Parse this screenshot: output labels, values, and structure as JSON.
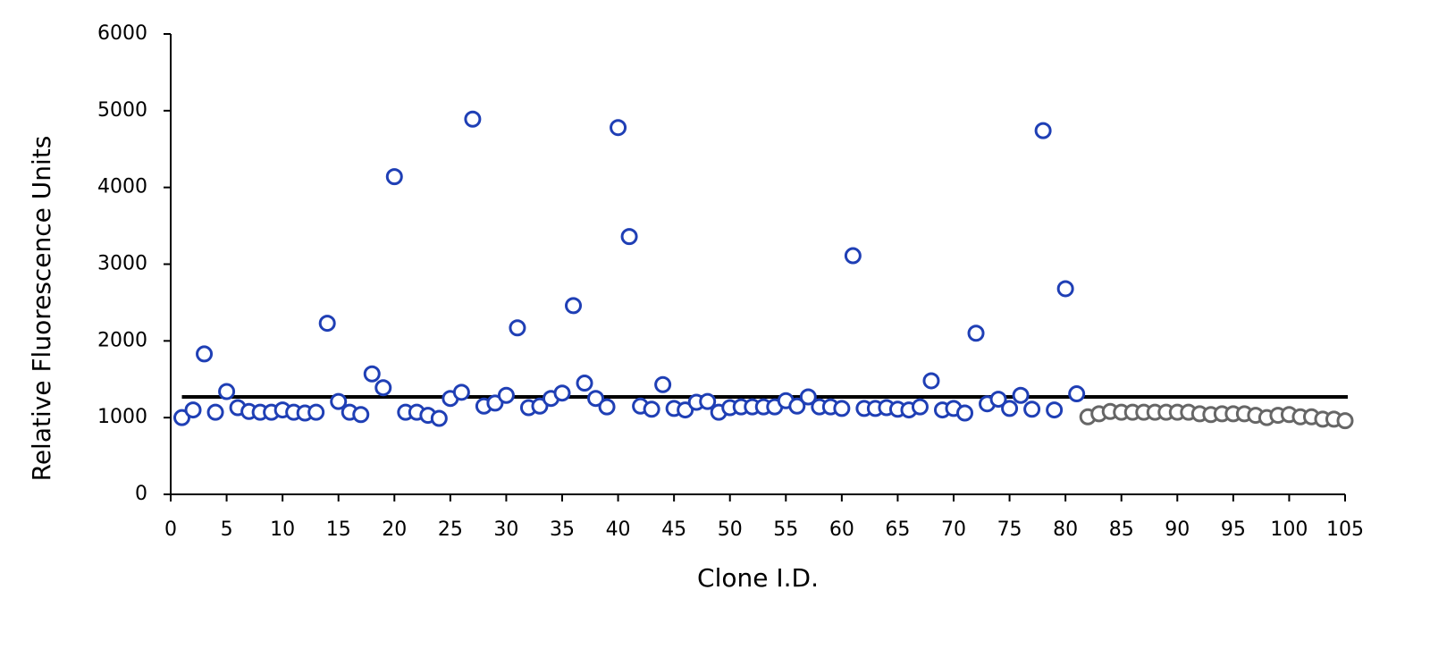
{
  "chart_data": {
    "type": "scatter",
    "x_label": "Clone I.D.",
    "y_label": "Relative Fluorescence Units",
    "xlim": [
      0,
      105
    ],
    "ylim": [
      0,
      6000
    ],
    "xticks": [
      0,
      5,
      10,
      15,
      20,
      25,
      30,
      35,
      40,
      45,
      50,
      55,
      60,
      65,
      70,
      75,
      80,
      85,
      90,
      95,
      100,
      105
    ],
    "yticks": [
      0,
      1000,
      2000,
      3000,
      4000,
      5000,
      6000
    ],
    "reference_line": 1270,
    "series": [
      {
        "color": "#1f3fb5",
        "x": [
          1,
          2,
          3,
          4,
          5,
          6,
          7,
          8,
          9,
          10,
          11,
          12,
          13,
          14,
          15,
          16,
          17,
          18,
          19,
          20,
          21,
          22,
          23,
          24,
          25,
          26,
          27,
          28,
          29,
          30,
          31,
          32,
          33,
          34,
          35,
          36,
          37,
          38,
          39,
          40,
          41,
          42,
          43,
          44,
          45,
          46,
          47,
          48,
          49,
          50,
          51,
          52,
          53,
          54,
          55,
          56,
          57,
          58,
          59,
          60,
          61,
          62,
          63,
          64,
          65,
          66,
          67,
          68,
          69,
          70,
          71,
          72,
          73,
          74,
          75,
          76,
          77,
          78,
          79,
          80,
          81
        ],
        "values": [
          1000,
          1100,
          1830,
          1070,
          1340,
          1130,
          1080,
          1070,
          1070,
          1100,
          1070,
          1060,
          1070,
          2230,
          1210,
          1070,
          1040,
          1570,
          1390,
          4140,
          1070,
          1070,
          1030,
          990,
          1250,
          1330,
          4890,
          1150,
          1190,
          1290,
          2170,
          1130,
          1150,
          1250,
          1320,
          2460,
          1450,
          1250,
          1140,
          4780,
          3360,
          1150,
          1110,
          1430,
          1120,
          1100,
          1200,
          1210,
          1070,
          1130,
          1140,
          1140,
          1140,
          1140,
          1220,
          1150,
          1270,
          1140,
          1140,
          1120,
          3110,
          1120,
          1120,
          1130,
          1110,
          1100,
          1140,
          1480,
          1100,
          1120,
          1060,
          2100,
          1180,
          1240,
          1120,
          1290,
          1110,
          4740,
          1100,
          2680,
          1310
        ]
      },
      {
        "color": "#666666",
        "x": [
          82,
          83,
          84,
          85,
          86,
          87,
          88,
          89,
          90,
          91,
          92,
          93,
          94,
          95,
          96,
          97,
          98,
          99,
          100,
          101,
          102,
          103,
          104,
          105
        ],
        "values": [
          1010,
          1050,
          1080,
          1070,
          1070,
          1070,
          1070,
          1070,
          1070,
          1070,
          1050,
          1040,
          1050,
          1050,
          1050,
          1030,
          1000,
          1030,
          1040,
          1010,
          1010,
          980,
          980,
          960
        ]
      }
    ]
  }
}
